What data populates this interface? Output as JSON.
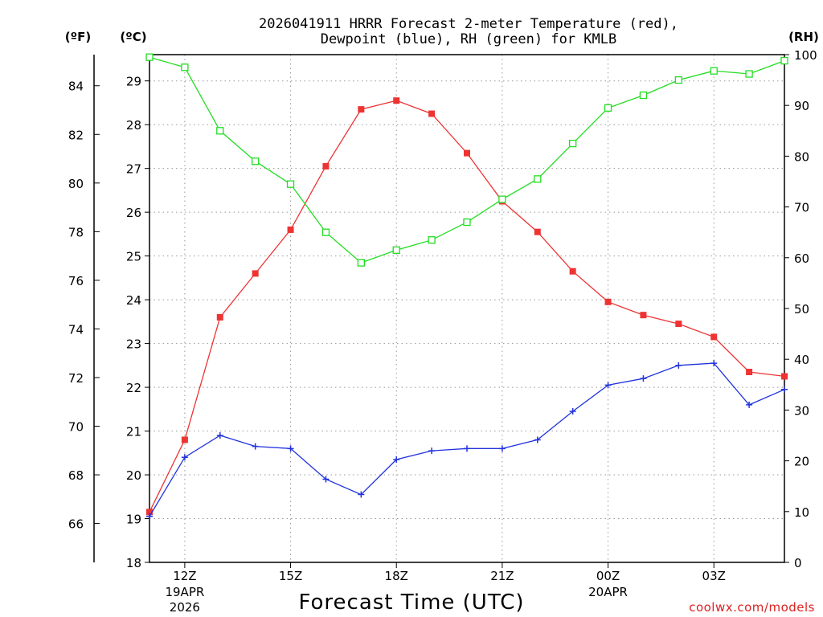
{
  "chart_data": {
    "type": "line",
    "title_line1": "2026041911 HRRR Forecast 2-meter Temperature (red),",
    "title_line2": "Dewpoint (blue), RH (green) for KMLB",
    "xlabel": "Forecast Time (UTC)",
    "credit": "coolwx.com/models",
    "unit_labels": {
      "fahrenheit": "(ºF)",
      "celsius": "(ºC)",
      "rh": "(RH)"
    },
    "x_hours": [
      11,
      12,
      13,
      14,
      15,
      16,
      17,
      18,
      19,
      20,
      21,
      22,
      23,
      24,
      25,
      26,
      27,
      28,
      29
    ],
    "x_ticks": [
      {
        "hour": 12,
        "label": "12Z",
        "sub1": "19APR",
        "sub2": "2026"
      },
      {
        "hour": 15,
        "label": "15Z",
        "sub1": "",
        "sub2": ""
      },
      {
        "hour": 18,
        "label": "18Z",
        "sub1": "",
        "sub2": ""
      },
      {
        "hour": 21,
        "label": "21Z",
        "sub1": "",
        "sub2": ""
      },
      {
        "hour": 24,
        "label": "00Z",
        "sub1": "20APR",
        "sub2": ""
      },
      {
        "hour": 27,
        "label": "03Z",
        "sub1": "",
        "sub2": ""
      }
    ],
    "celsius_axis": {
      "range": [
        18,
        29.6
      ],
      "ticks": [
        18,
        19,
        20,
        21,
        22,
        23,
        24,
        25,
        26,
        27,
        28,
        29
      ]
    },
    "fahrenheit_axis": {
      "ticks": [
        66,
        68,
        70,
        72,
        74,
        76,
        78,
        80,
        82,
        84
      ]
    },
    "rh_axis": {
      "range": [
        0,
        100
      ],
      "ticks": [
        0,
        10,
        20,
        30,
        40,
        50,
        60,
        70,
        80,
        90,
        100
      ]
    },
    "series": [
      {
        "name": "Temperature",
        "axis": "celsius",
        "color": "#ee3333",
        "marker": "filled-square",
        "values": [
          19.15,
          20.8,
          23.6,
          24.6,
          25.6,
          27.05,
          28.35,
          28.55,
          28.25,
          27.35,
          26.25,
          25.55,
          24.65,
          23.95,
          23.65,
          23.45,
          23.15,
          22.35,
          22.25
        ]
      },
      {
        "name": "Dewpoint",
        "axis": "celsius",
        "color": "#2233dd",
        "marker": "plus",
        "values": [
          19.05,
          20.4,
          20.9,
          20.65,
          20.6,
          19.9,
          19.55,
          20.35,
          20.55,
          20.6,
          20.6,
          20.8,
          21.45,
          22.05,
          22.2,
          22.5,
          22.55,
          21.6,
          21.95
        ]
      },
      {
        "name": "RH",
        "axis": "rh",
        "color": "#22dd22",
        "marker": "open-square",
        "values": [
          99.5,
          97.5,
          85,
          79,
          74.5,
          65,
          59,
          61.5,
          63.5,
          67,
          71.5,
          75.5,
          82.5,
          89.5,
          92,
          95,
          96.8,
          96.2,
          98.8
        ]
      }
    ]
  }
}
